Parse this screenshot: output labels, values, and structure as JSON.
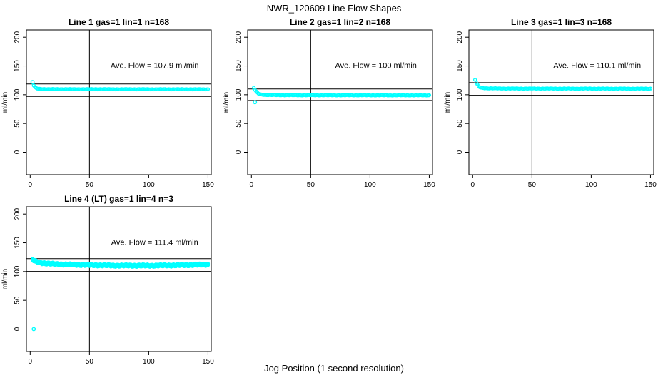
{
  "figure": {
    "title": "NWR_120609  Line Flow Shapes",
    "xlabel": "Jog Position (1 second resolution)",
    "ylabel": "ml/min",
    "point_color": "#00FFFF",
    "axis_color": "#000000",
    "background": "#FFFFFF"
  },
  "chart_data": [
    {
      "type": "scatter",
      "title": "Line 1 gas=1 lin=1 n=168",
      "annotation": "Ave. Flow =  107.9  ml/min",
      "ave_flow": 107.9,
      "ylabel": "ml/min",
      "xlim": [
        0,
        150
      ],
      "ylim": [
        0,
        200
      ],
      "xticks": [
        0,
        50,
        100,
        150
      ],
      "yticks": [
        0,
        50,
        100,
        150,
        200
      ],
      "hlines": [
        118.7,
        97.1
      ],
      "vline": 50,
      "outliers": [
        [
          2,
          122
        ]
      ],
      "profile": [
        [
          3,
          116
        ],
        [
          4,
          113
        ],
        [
          5,
          111.5
        ],
        [
          6,
          110.8
        ],
        [
          8,
          110.2
        ],
        [
          15,
          109.7
        ],
        [
          150,
          109.5
        ]
      ],
      "point_rows": [
        0
      ]
    },
    {
      "type": "scatter",
      "title": "Line 2 gas=1 lin=2 n=168",
      "annotation": "Ave. Flow =  100  ml/min",
      "ave_flow": 100,
      "ylabel": "ml/min",
      "xlim": [
        0,
        150
      ],
      "ylim": [
        0,
        200
      ],
      "xticks": [
        0,
        50,
        100,
        150
      ],
      "yticks": [
        0,
        50,
        100,
        150,
        200
      ],
      "hlines": [
        110,
        90
      ],
      "vline": 50,
      "outliers": [
        [
          3,
          87
        ]
      ],
      "profile": [
        [
          2,
          112
        ],
        [
          3,
          108.5
        ],
        [
          4,
          105.5
        ],
        [
          5,
          103.5
        ],
        [
          6,
          102
        ],
        [
          8,
          100.5
        ],
        [
          12,
          99.6
        ],
        [
          30,
          99.2
        ],
        [
          150,
          99
        ]
      ],
      "point_rows": [
        0
      ]
    },
    {
      "type": "scatter",
      "title": "Line 3 gas=1 lin=3 n=168",
      "annotation": "Ave. Flow =  110.1  ml/min",
      "ave_flow": 110.1,
      "ylabel": "ml/min",
      "xlim": [
        0,
        150
      ],
      "ylim": [
        0,
        200
      ],
      "xticks": [
        0,
        50,
        100,
        150
      ],
      "yticks": [
        0,
        50,
        100,
        150,
        200
      ],
      "hlines": [
        121.1,
        99.1
      ],
      "vline": 50,
      "outliers": [],
      "profile": [
        [
          2,
          126
        ],
        [
          3,
          121
        ],
        [
          4,
          117.5
        ],
        [
          5,
          114.8
        ],
        [
          6,
          113.2
        ],
        [
          8,
          111.8
        ],
        [
          12,
          111.2
        ],
        [
          30,
          110.8
        ],
        [
          150,
          110.6
        ]
      ],
      "point_rows": [
        0
      ]
    },
    {
      "type": "scatter",
      "title": "Line 4 (LT) gas=1 lin=4 n=3",
      "annotation": "Ave. Flow =  111.4  ml/min",
      "ave_flow": 111.4,
      "ylabel": "ml/min",
      "xlim": [
        0,
        150
      ],
      "ylim": [
        0,
        200
      ],
      "xticks": [
        0,
        50,
        100,
        150
      ],
      "yticks": [
        0,
        50,
        100,
        150,
        200
      ],
      "hlines": [
        122.5,
        100.3
      ],
      "vline": 50,
      "outliers": [
        [
          3,
          0
        ]
      ],
      "profile": [
        [
          2,
          121
        ],
        [
          3,
          119.5
        ],
        [
          4,
          118
        ],
        [
          6,
          116.5
        ],
        [
          10,
          115
        ],
        [
          20,
          113.2
        ],
        [
          40,
          111.8
        ],
        [
          70,
          110.6
        ],
        [
          100,
          110.4
        ],
        [
          120,
          110.9
        ],
        [
          140,
          111.8
        ],
        [
          150,
          112.2
        ]
      ],
      "point_rows": [
        -1.4,
        0,
        1.4
      ]
    }
  ]
}
